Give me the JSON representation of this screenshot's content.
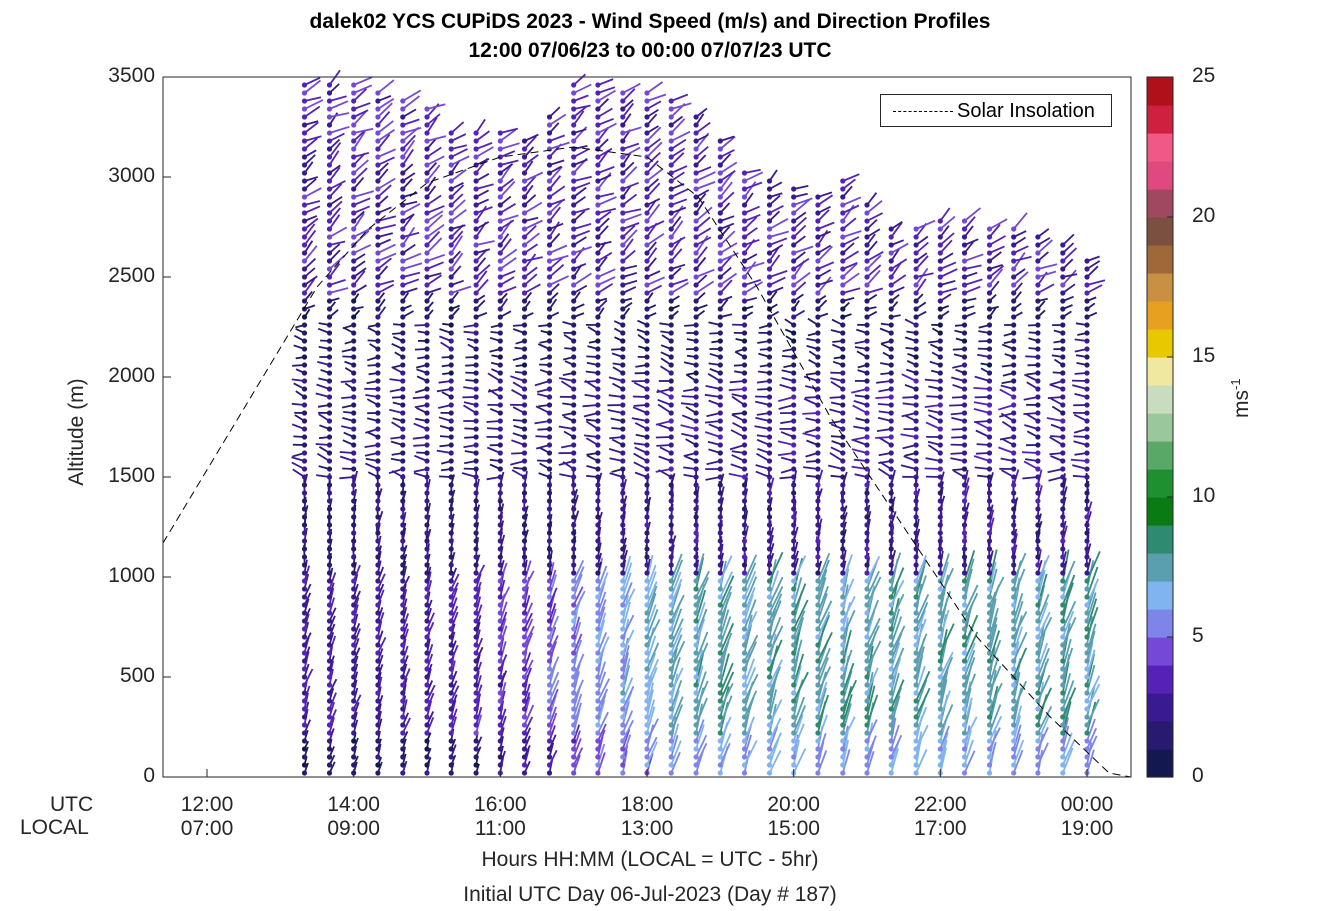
{
  "title_line1": "dalek02 YCS CUPiDS 2023 - Wind Speed (m/s) and Direction Profiles",
  "title_line2": "12:00 07/06/23 to 00:00 07/07/23  UTC",
  "ylabel": "Altitude (m)",
  "xlabel_line1": "Hours HH:MM  (LOCAL = UTC - 5hr)",
  "xlabel_line2": "Initial UTC Day 06-Jul-2023 (Day # 187)",
  "row_label_utc": "UTC",
  "row_label_local": "LOCAL",
  "colorbar_label": "ms",
  "colorbar_label_sup": "-1",
  "legend_text": "Solar Insolation",
  "yticks": [
    "0",
    "500",
    "1000",
    "1500",
    "2000",
    "2500",
    "3000",
    "3500"
  ],
  "xticks_utc": [
    "12:00",
    "14:00",
    "16:00",
    "18:00",
    "20:00",
    "22:00",
    "00:00"
  ],
  "xticks_local": [
    "07:00",
    "09:00",
    "11:00",
    "13:00",
    "15:00",
    "17:00",
    "19:00"
  ],
  "cticks": [
    "0",
    "5",
    "10",
    "15",
    "20",
    "25"
  ],
  "chart_data": {
    "type": "scatter",
    "subtype": "wind profile barbs (stick plot) vs time and altitude",
    "x_unit": "hours UTC since 12:00 07/06/23",
    "xlim": [
      11.4,
      24.6
    ],
    "ylim": [
      0,
      3500
    ],
    "clim": [
      0,
      25
    ],
    "grid": false,
    "legend_position": "top-right",
    "profile_times_utc_hours": [
      13.33,
      13.67,
      14.0,
      14.33,
      14.67,
      15.0,
      15.33,
      15.67,
      16.0,
      16.33,
      16.67,
      17.0,
      17.33,
      17.67,
      18.0,
      18.33,
      18.67,
      19.0,
      19.33,
      19.67,
      20.0,
      20.33,
      20.67,
      21.0,
      21.33,
      21.67,
      22.0,
      22.33,
      22.67,
      23.0,
      23.33,
      23.67,
      24.0
    ],
    "profile_top_altitude_m": [
      3480,
      3480,
      3480,
      3420,
      3380,
      3360,
      3240,
      3220,
      3220,
      3200,
      3330,
      3480,
      3480,
      3420,
      3430,
      3380,
      3320,
      3180,
      3040,
      3000,
      2960,
      2900,
      3000,
      2880,
      2760,
      2760,
      2800,
      2800,
      2760,
      2740,
      2700,
      2660,
      2600
    ],
    "wind_speed_colorbar_ms": [
      0,
      25
    ],
    "solar_insolation_curve": {
      "name": "Solar Insolation",
      "style": "dashed",
      "x": [
        11.4,
        13.5,
        14.2,
        15.0,
        16.0,
        17.0,
        18.0,
        18.7,
        19.5,
        20.5,
        21.5,
        22.5,
        23.5,
        24.3,
        24.6
      ],
      "y": [
        1170,
        2450,
        2740,
        2970,
        3100,
        3150,
        3100,
        2900,
        2450,
        1800,
        1250,
        700,
        300,
        20,
        0
      ]
    },
    "speed_bands": [
      {
        "altitude_range_m": [
          0,
          1000
        ],
        "afternoon_speed_ms": 7,
        "morning_speed_ms": 3
      },
      {
        "altitude_range_m": [
          1000,
          2000
        ],
        "speed_ms": 2
      },
      {
        "altitude_range_m": [
          2000,
          2400
        ],
        "speed_ms": 1
      },
      {
        "altitude_range_m": [
          2400,
          3500
        ],
        "speed_ms": 4
      }
    ]
  },
  "colors": {
    "colormap": [
      "#141850",
      "#281a6e",
      "#3a1a90",
      "#5522b8",
      "#7548d8",
      "#7d86e8",
      "#7fb4f0",
      "#5a9fb0",
      "#2f8a72",
      "#0a7a12",
      "#1e9030",
      "#5aa868",
      "#9ac89c",
      "#c8dcc0",
      "#f0e8a0",
      "#e8c800",
      "#e8a020",
      "#c89040",
      "#a06838",
      "#7c5040",
      "#a04860",
      "#e04880",
      "#f05888",
      "#d02040",
      "#b0101a"
    ]
  }
}
